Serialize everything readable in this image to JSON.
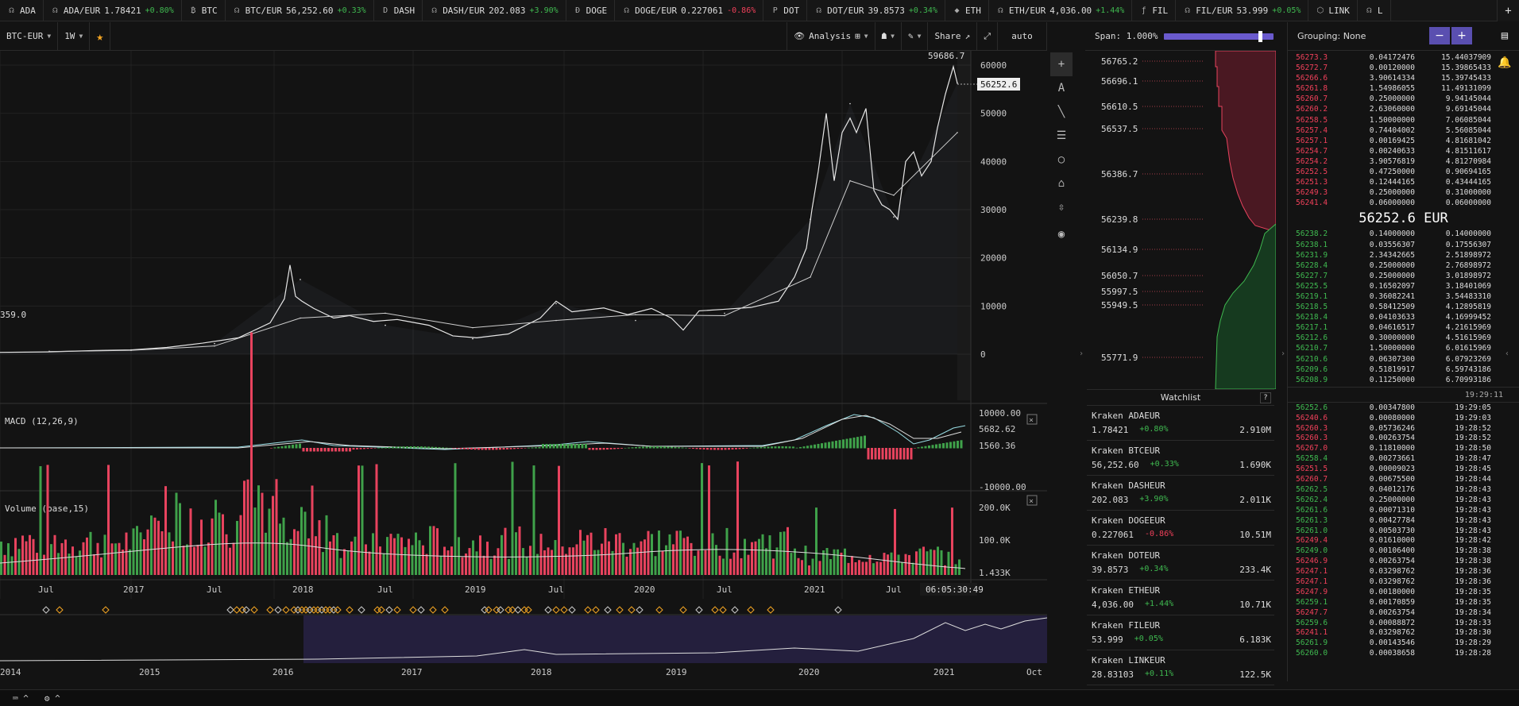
{
  "ticker": [
    {
      "sym": "ADA",
      "icon": "ada-icon"
    },
    {
      "pair": "ADA/EUR",
      "price": "1.78421",
      "chg": "+0.80%",
      "dir": "pos"
    },
    {
      "sym": "BTC",
      "icon": "btc-icon"
    },
    {
      "pair": "BTC/EUR",
      "price": "56,252.60",
      "chg": "+0.33%",
      "dir": "pos"
    },
    {
      "sym": "DASH",
      "icon": "dash-icon"
    },
    {
      "pair": "DASH/EUR",
      "price": "202.083",
      "chg": "+3.90%",
      "dir": "pos"
    },
    {
      "sym": "DOGE",
      "icon": "doge-icon"
    },
    {
      "pair": "DOGE/EUR",
      "price": "0.227061",
      "chg": "-0.86%",
      "dir": "neg"
    },
    {
      "sym": "DOT",
      "icon": "dot-icon"
    },
    {
      "pair": "DOT/EUR",
      "price": "39.8573",
      "chg": "+0.34%",
      "dir": "pos"
    },
    {
      "sym": "ETH",
      "icon": "eth-icon"
    },
    {
      "pair": "ETH/EUR",
      "price": "4,036.00",
      "chg": "+1.44%",
      "dir": "pos"
    },
    {
      "sym": "FIL",
      "icon": "fil-icon"
    },
    {
      "pair": "FIL/EUR",
      "price": "53.999",
      "chg": "+0.05%",
      "dir": "pos"
    },
    {
      "sym": "LINK",
      "icon": "link-icon"
    },
    {
      "pair": "L",
      "price": "",
      "chg": "",
      "dir": "pos"
    }
  ],
  "toolbar": {
    "market": "BTC-EUR",
    "interval": "1W",
    "analysis": "Analysis",
    "share": "Share",
    "auto": "auto"
  },
  "chart": {
    "price_axis": [
      "60000",
      "50000",
      "40000",
      "30000",
      "20000",
      "10000",
      "0"
    ],
    "high_label": "59686.7",
    "current_label": "56252.6",
    "low_label": "359.0",
    "macd_title": "MACD (12,26,9)",
    "macd_axis": [
      "10000.00",
      "5682.62",
      "1560.36",
      "-10000.00"
    ],
    "volume_title": "Volume (base,15)",
    "volume_axis": [
      "200.0K",
      "100.0K",
      "1.433K"
    ],
    "time_axis": [
      "Jul",
      "2017",
      "Jul",
      "2018",
      "Jul",
      "2019",
      "Jul",
      "2020",
      "Jul",
      "2021",
      "Jul"
    ],
    "cursor_time": "06:05:30:49",
    "nav_axis": [
      "2014",
      "2015",
      "2016",
      "2017",
      "2018",
      "2019",
      "2020",
      "2021",
      "Oct"
    ]
  },
  "chart_data": {
    "type": "line",
    "title": "",
    "x": [
      "2016-07",
      "2017-01",
      "2017-07",
      "2017-12",
      "2018-07",
      "2019-01",
      "2019-07",
      "2020-01",
      "2020-07",
      "2021-01",
      "2021-04",
      "2021-07",
      "2021-10"
    ],
    "series": [
      {
        "values": [
          600,
          900,
          2200,
          15500,
          6000,
          3200,
          10500,
          7000,
          8500,
          28000,
          52000,
          28500,
          56252.6
        ]
      },
      {
        "values": [
          550,
          800,
          1700,
          7500,
          8500,
          5500,
          7000,
          8200,
          8000,
          16000,
          36000,
          33000,
          46000
        ]
      }
    ],
    "ylim": [
      0,
      60000
    ]
  },
  "depth": {
    "span": "Span: 1.000%",
    "labels": [
      "56765.2",
      "56696.1",
      "56610.5",
      "56537.5",
      "56386.7",
      "56239.8",
      "56134.9",
      "56050.7",
      "55997.5",
      "55949.5",
      "55771.9"
    ]
  },
  "watchlist": {
    "title": "Watchlist",
    "help": "?",
    "items": [
      {
        "name": "Kraken ADAEUR",
        "price": "1.78421",
        "chg": "+0.80%",
        "dir": "pos",
        "vol": "2.910M"
      },
      {
        "name": "Kraken BTCEUR",
        "price": "56,252.60",
        "chg": "+0.33%",
        "dir": "pos",
        "vol": "1.690K"
      },
      {
        "name": "Kraken DASHEUR",
        "price": "202.083",
        "chg": "+3.90%",
        "dir": "pos",
        "vol": "2.011K"
      },
      {
        "name": "Kraken DOGEEUR",
        "price": "0.227061",
        "chg": "-0.86%",
        "dir": "neg",
        "vol": "10.51M"
      },
      {
        "name": "Kraken DOTEUR",
        "price": "39.8573",
        "chg": "+0.34%",
        "dir": "pos",
        "vol": "233.4K"
      },
      {
        "name": "Kraken ETHEUR",
        "price": "4,036.00",
        "chg": "+1.44%",
        "dir": "pos",
        "vol": "10.71K"
      },
      {
        "name": "Kraken FILEUR",
        "price": "53.999",
        "chg": "+0.05%",
        "dir": "pos",
        "vol": "6.183K"
      },
      {
        "name": "Kraken LINKEUR",
        "price": "28.83103",
        "chg": "+0.11%",
        "dir": "pos",
        "vol": "122.5K"
      }
    ]
  },
  "book": {
    "grouping": "Grouping: None",
    "minus": "−",
    "plus": "+",
    "mid": "56252.6 EUR",
    "clock": "19:29:11",
    "asks": [
      [
        "56273.3",
        "0.04172476",
        "15.44037909"
      ],
      [
        "56272.7",
        "0.00120000",
        "15.39865433"
      ],
      [
        "56266.6",
        "3.90614334",
        "15.39745433"
      ],
      [
        "56261.8",
        "1.54986055",
        "11.49131099"
      ],
      [
        "56260.7",
        "0.25000000",
        "9.94145044"
      ],
      [
        "56260.2",
        "2.63060000",
        "9.69145044"
      ],
      [
        "56258.5",
        "1.50000000",
        "7.06085044"
      ],
      [
        "56257.4",
        "0.74404002",
        "5.56085044"
      ],
      [
        "56257.1",
        "0.00169425",
        "4.81681042"
      ],
      [
        "56254.7",
        "0.00240633",
        "4.81511617"
      ],
      [
        "56254.2",
        "3.90576819",
        "4.81270984"
      ],
      [
        "56252.5",
        "0.47250000",
        "0.90694165"
      ],
      [
        "56251.3",
        "0.12444165",
        "0.43444165"
      ],
      [
        "56249.3",
        "0.25000000",
        "0.31000000"
      ],
      [
        "56241.4",
        "0.06000000",
        "0.06000000"
      ]
    ],
    "bids": [
      [
        "56238.2",
        "0.14000000",
        "0.14000000"
      ],
      [
        "56238.1",
        "0.03556307",
        "0.17556307"
      ],
      [
        "56231.9",
        "2.34342665",
        "2.51898972"
      ],
      [
        "56228.4",
        "0.25000000",
        "2.76898972"
      ],
      [
        "56227.7",
        "0.25000000",
        "3.01898972"
      ],
      [
        "56225.5",
        "0.16502097",
        "3.18401069"
      ],
      [
        "56219.1",
        "0.36082241",
        "3.54483310"
      ],
      [
        "56218.5",
        "0.58412509",
        "4.12895819"
      ],
      [
        "56218.4",
        "0.04103633",
        "4.16999452"
      ],
      [
        "56217.1",
        "0.04616517",
        "4.21615969"
      ],
      [
        "56212.6",
        "0.30000000",
        "4.51615969"
      ],
      [
        "56210.7",
        "1.50000000",
        "6.01615969"
      ],
      [
        "56210.6",
        "0.06307300",
        "6.07923269"
      ],
      [
        "56209.6",
        "0.51819917",
        "6.59743186"
      ],
      [
        "56208.9",
        "0.11250000",
        "6.70993186"
      ]
    ],
    "trades": [
      [
        "56252.6",
        "0.00347800",
        "19:29:05",
        "pos"
      ],
      [
        "56240.6",
        "0.00080000",
        "19:29:03",
        "neg"
      ],
      [
        "56260.3",
        "0.05736246",
        "19:28:52",
        "neg"
      ],
      [
        "56260.3",
        "0.00263754",
        "19:28:52",
        "neg"
      ],
      [
        "56267.0",
        "0.11810000",
        "19:28:50",
        "neg"
      ],
      [
        "56258.4",
        "0.00273661",
        "19:28:47",
        "pos"
      ],
      [
        "56251.5",
        "0.00009023",
        "19:28:45",
        "neg"
      ],
      [
        "56260.7",
        "0.00675500",
        "19:28:44",
        "neg"
      ],
      [
        "56262.5",
        "0.04012176",
        "19:28:43",
        "pos"
      ],
      [
        "56262.4",
        "0.25000000",
        "19:28:43",
        "pos"
      ],
      [
        "56261.6",
        "0.00071310",
        "19:28:43",
        "pos"
      ],
      [
        "56261.3",
        "0.00427784",
        "19:28:43",
        "pos"
      ],
      [
        "56261.0",
        "0.00503730",
        "19:28:43",
        "pos"
      ],
      [
        "56249.4",
        "0.01610000",
        "19:28:42",
        "neg"
      ],
      [
        "56249.0",
        "0.00106400",
        "19:28:38",
        "pos"
      ],
      [
        "56246.9",
        "0.00263754",
        "19:28:38",
        "neg"
      ],
      [
        "56247.1",
        "0.03298762",
        "19:28:36",
        "neg"
      ],
      [
        "56247.1",
        "0.03298762",
        "19:28:36",
        "neg"
      ],
      [
        "56247.9",
        "0.00180000",
        "19:28:35",
        "neg"
      ],
      [
        "56259.1",
        "0.00170859",
        "19:28:35",
        "pos"
      ],
      [
        "56247.7",
        "0.00263754",
        "19:28:34",
        "neg"
      ],
      [
        "56259.6",
        "0.00088872",
        "19:28:33",
        "pos"
      ],
      [
        "56241.1",
        "0.03298762",
        "19:28:30",
        "neg"
      ],
      [
        "56261.9",
        "0.00143546",
        "19:28:29",
        "pos"
      ],
      [
        "56260.0",
        "0.00038658",
        "19:28:28",
        "pos"
      ],
      [
        "56259.7",
        "0.00386782",
        "19:28:28",
        "pos"
      ]
    ]
  }
}
